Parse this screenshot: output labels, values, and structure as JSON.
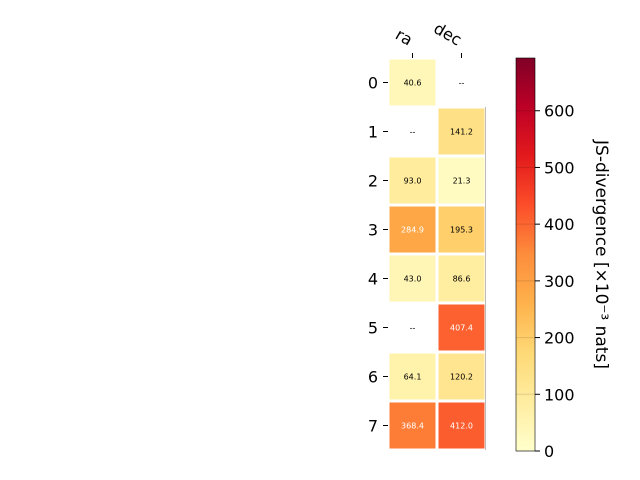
{
  "chart_data": {
    "type": "heatmap",
    "columns": [
      "ra",
      "dec"
    ],
    "rows": [
      "0",
      "1",
      "2",
      "3",
      "4",
      "5",
      "6",
      "7"
    ],
    "values": [
      [
        40.6,
        null
      ],
      [
        null,
        141.2
      ],
      [
        93.0,
        21.3
      ],
      [
        284.9,
        195.3
      ],
      [
        43.0,
        86.6
      ],
      [
        null,
        407.4
      ],
      [
        64.1,
        120.2
      ],
      [
        368.4,
        412.0
      ]
    ],
    "cell_labels": [
      [
        "40.6",
        "--"
      ],
      [
        "--",
        "141.2"
      ],
      [
        "93.0",
        "21.3"
      ],
      [
        "284.9",
        "195.3"
      ],
      [
        "43.0",
        "86.6"
      ],
      [
        "--",
        "407.4"
      ],
      [
        "64.1",
        "120.2"
      ],
      [
        "368.4",
        "412.0"
      ]
    ],
    "colormap": "YlOrRd",
    "colorbar": {
      "label": "JS-divergence [×10⁻³ nats]",
      "range": [
        0,
        693
      ],
      "ticks": [
        0,
        100,
        200,
        300,
        400,
        500,
        600
      ],
      "tick_labels": [
        "0",
        "100",
        "200",
        "300",
        "400",
        "500",
        "600"
      ]
    },
    "grid": false
  }
}
